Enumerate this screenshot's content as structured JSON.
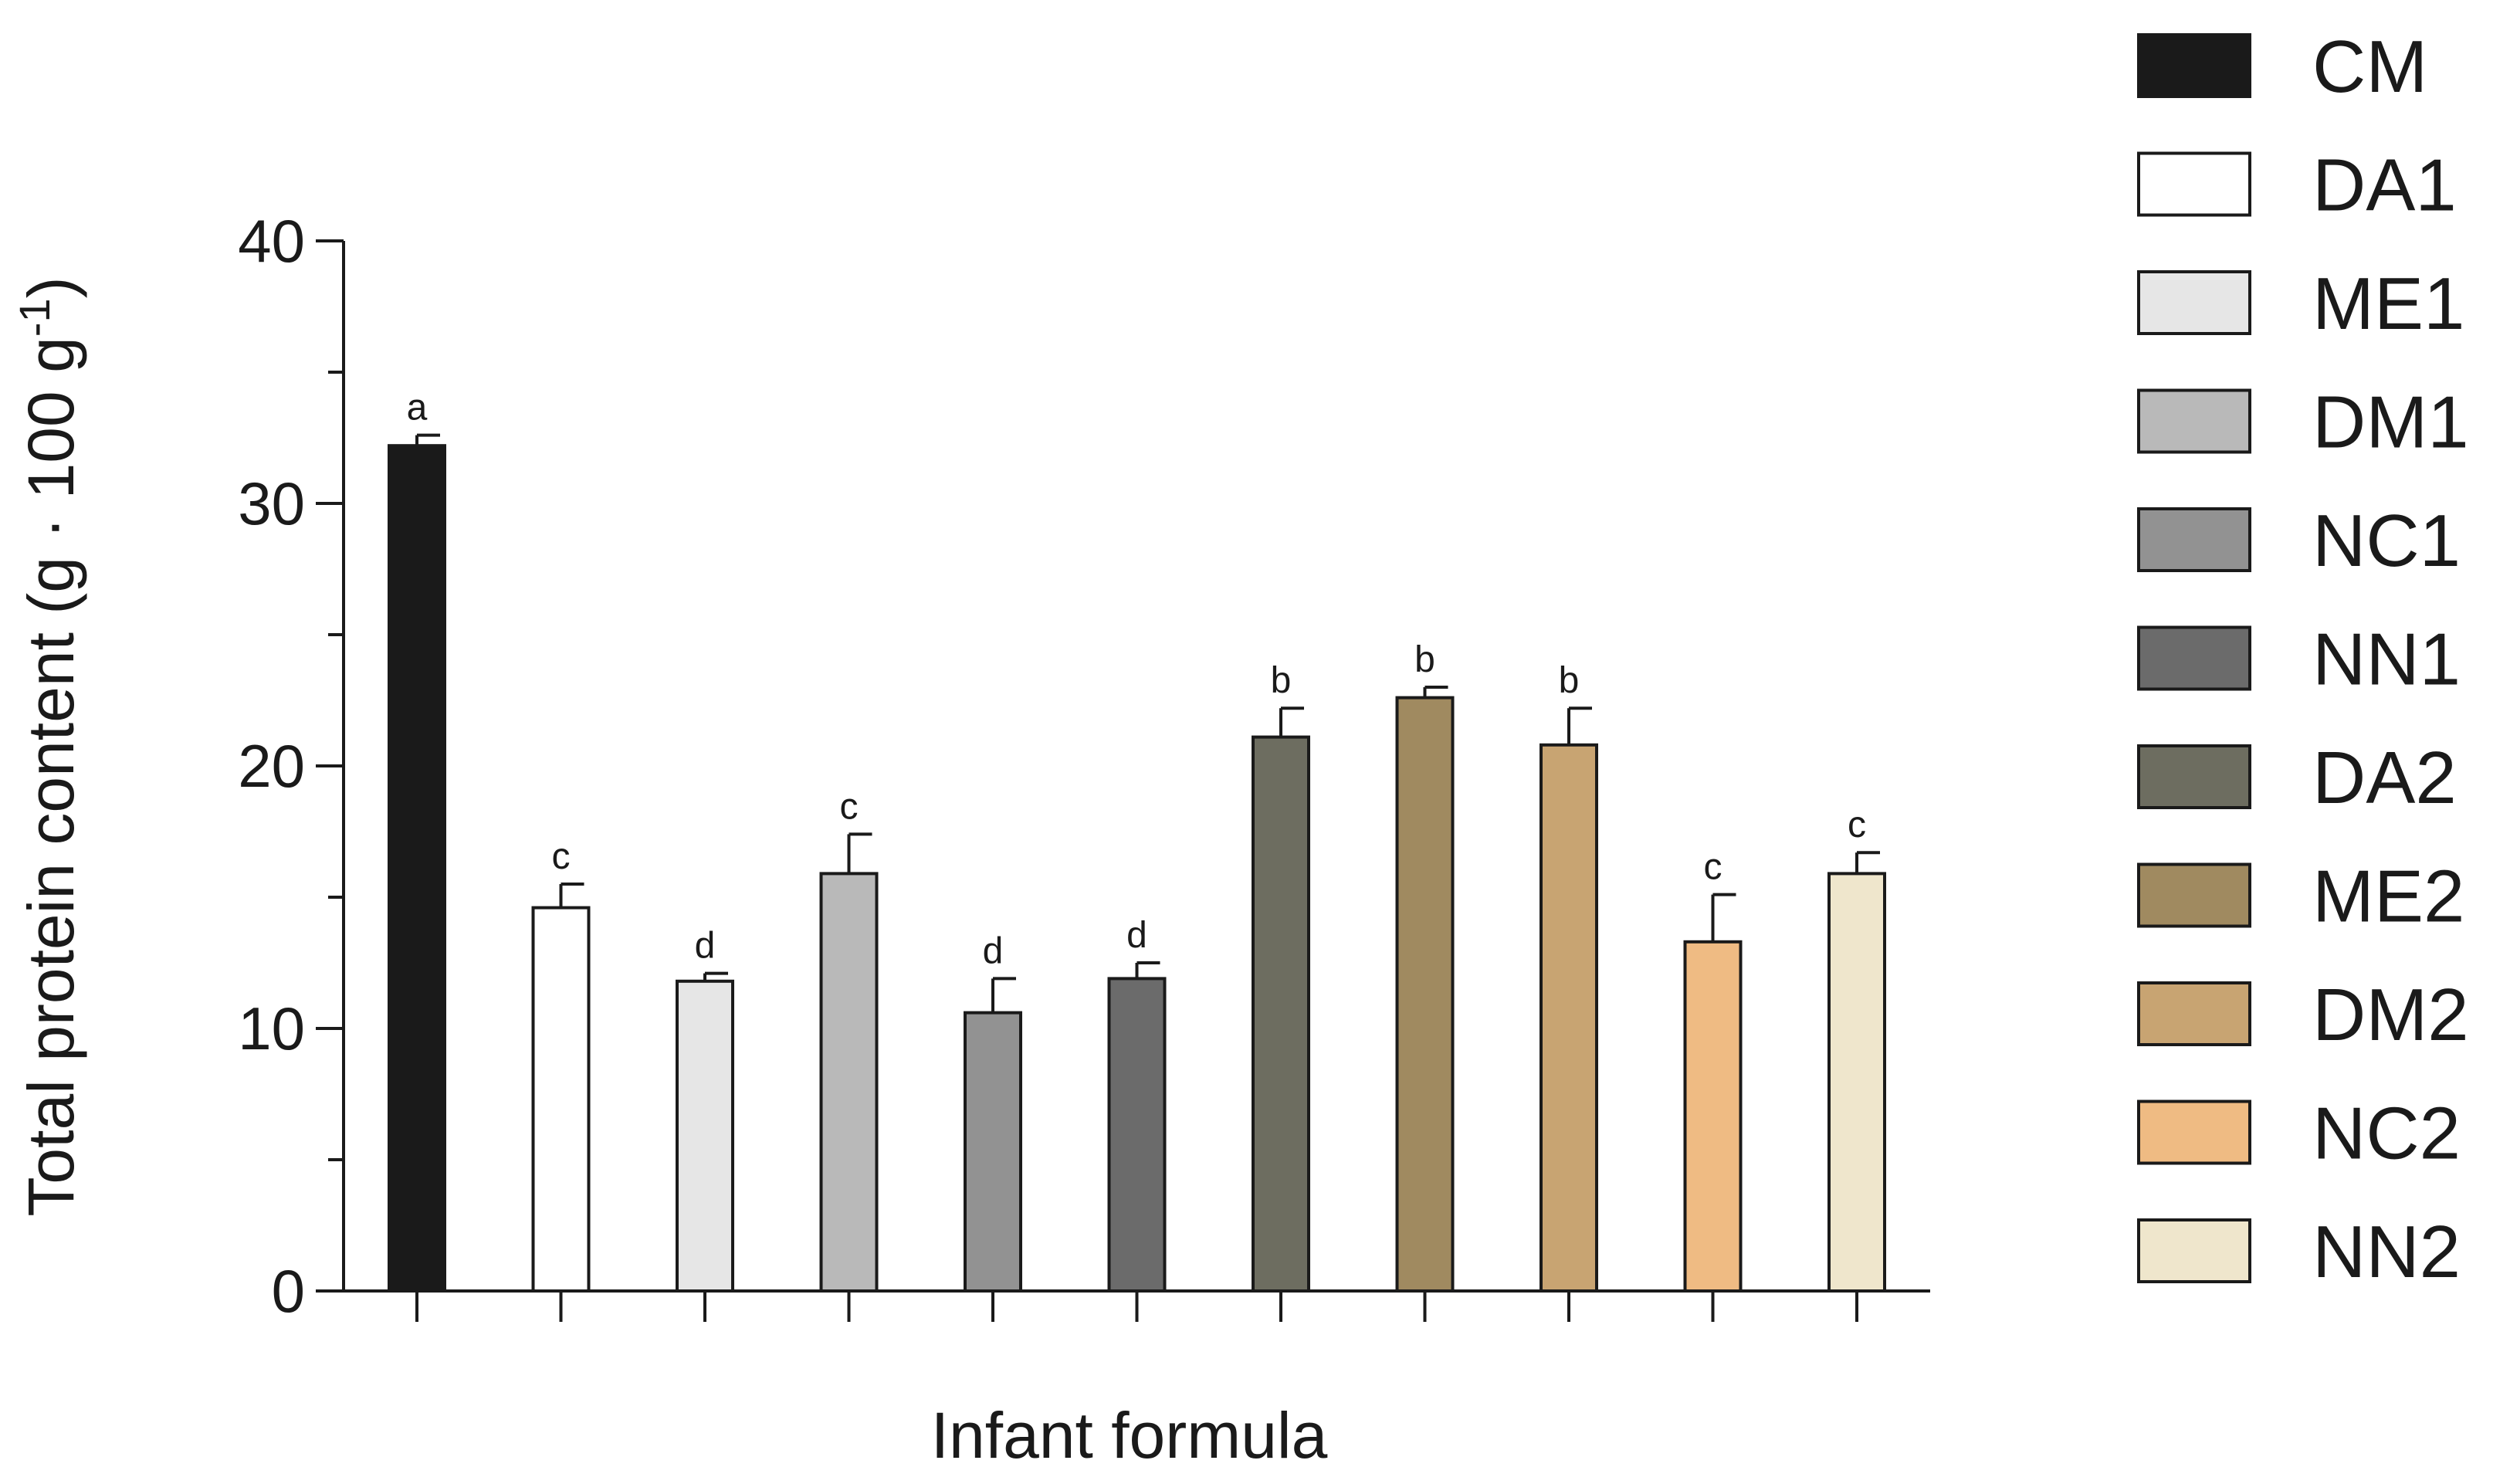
{
  "chart_data": {
    "type": "bar",
    "xlabel": "Infant formula",
    "ylabel": "Total protein content (g · 100 g",
    "ylabel_superscript": "-1",
    "ylabel_close": ")",
    "ylim": [
      0,
      40
    ],
    "yticks": [
      "0",
      "10",
      "20",
      "30",
      "40"
    ],
    "grid": false,
    "legend_placement": "right",
    "categories": [
      "CM",
      "DA1",
      "ME1",
      "DM1",
      "NC1",
      "NN1",
      "DA2",
      "ME2",
      "DM2",
      "NC2",
      "NN2"
    ],
    "values": [
      32.2,
      14.6,
      11.8,
      15.9,
      10.6,
      11.9,
      21.1,
      22.6,
      20.8,
      13.3,
      15.9
    ],
    "errors": [
      0.4,
      0.9,
      0.3,
      1.5,
      1.3,
      0.6,
      1.1,
      0.4,
      1.4,
      1.8,
      0.8
    ],
    "significance": [
      "a",
      "c",
      "d",
      "c",
      "d",
      "d",
      "b",
      "b",
      "b",
      "c",
      "c"
    ],
    "colors": [
      "#1a1a1a",
      "#ffffff",
      "#e6e6e6",
      "#b9b9b9",
      "#929292",
      "#6b6b6b",
      "#6d6d60",
      "#a08a60",
      "#c8a472",
      "#efbb83",
      "#efe6cc"
    ]
  }
}
